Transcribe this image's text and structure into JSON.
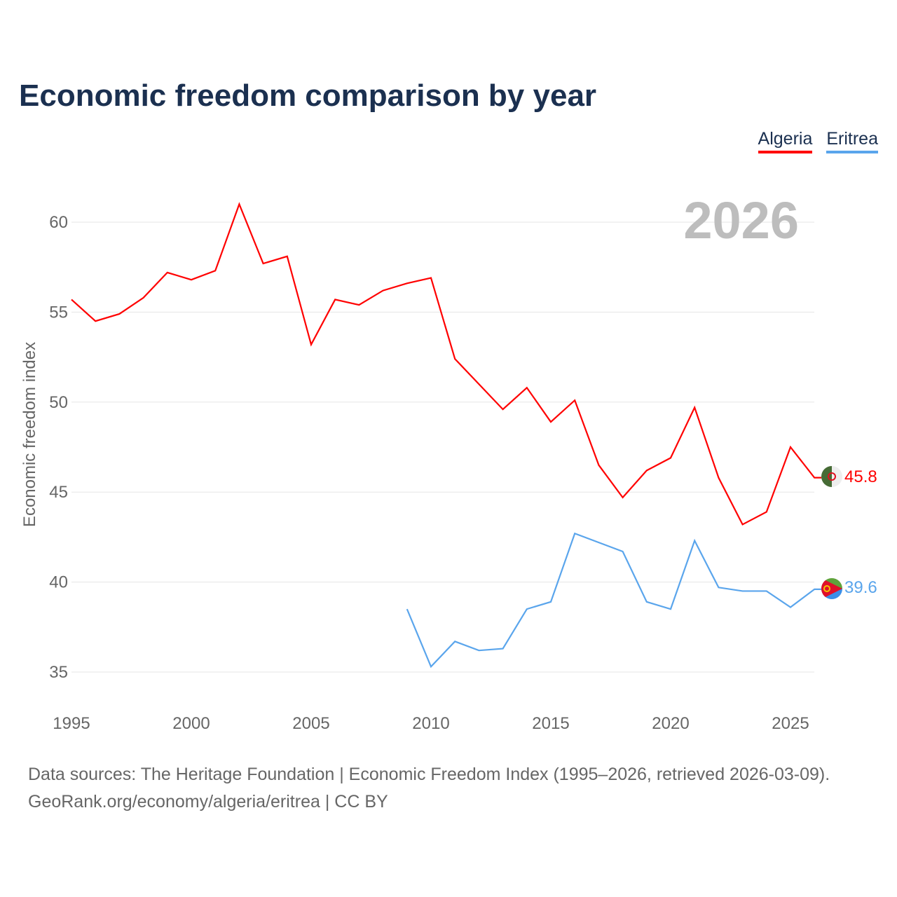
{
  "title": "Economic freedom comparison by year",
  "year_label": "2026",
  "footer": {
    "line1": "Data sources: The Heritage Foundation | Economic Freedom Index (1995–2026, retrieved 2026-03-09).",
    "line2": "GeoRank.org/economy/algeria/eritrea | CC BY"
  },
  "chart_data": {
    "type": "line",
    "title": "Economic freedom comparison by year",
    "xlabel": "",
    "ylabel": "Economic freedom index",
    "xlim": [
      1995,
      2026
    ],
    "ylim": [
      33.5,
      62
    ],
    "xticks": [
      1995,
      2000,
      2005,
      2010,
      2015,
      2020,
      2025
    ],
    "yticks": [
      35,
      40,
      45,
      50,
      55,
      60
    ],
    "grid": true,
    "legend": "top-right",
    "series": [
      {
        "name": "Algeria",
        "color": "#ff0000",
        "end_label": "45.8",
        "x": [
          1995,
          1996,
          1997,
          1998,
          1999,
          2000,
          2001,
          2002,
          2003,
          2004,
          2005,
          2006,
          2007,
          2008,
          2009,
          2010,
          2011,
          2012,
          2013,
          2014,
          2015,
          2016,
          2017,
          2018,
          2019,
          2020,
          2021,
          2022,
          2023,
          2024,
          2025,
          2026
        ],
        "values": [
          55.7,
          54.5,
          54.9,
          55.8,
          57.2,
          56.8,
          57.3,
          61.0,
          57.7,
          58.1,
          53.2,
          55.7,
          55.4,
          56.2,
          56.6,
          56.9,
          52.4,
          51.0,
          49.6,
          50.8,
          48.9,
          50.1,
          46.5,
          44.7,
          46.2,
          46.9,
          49.7,
          45.8,
          43.2,
          43.9,
          47.5,
          45.8
        ]
      },
      {
        "name": "Eritrea",
        "color": "#5aa5ec",
        "end_label": "39.6",
        "x": [
          2009,
          2010,
          2011,
          2012,
          2013,
          2014,
          2015,
          2016,
          2017,
          2018,
          2019,
          2020,
          2021,
          2022,
          2023,
          2024,
          2025,
          2026
        ],
        "values": [
          38.5,
          35.3,
          36.7,
          36.2,
          36.3,
          38.5,
          38.9,
          42.7,
          42.2,
          41.7,
          38.9,
          38.5,
          42.3,
          39.7,
          39.5,
          39.5,
          38.6,
          39.6
        ]
      }
    ]
  }
}
